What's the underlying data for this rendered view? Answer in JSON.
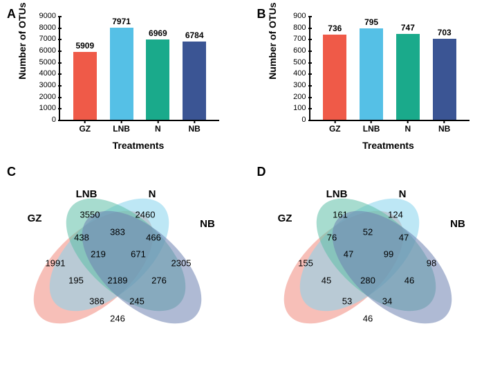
{
  "colors": {
    "gz": "#ef5a48",
    "lnb": "#55c0e6",
    "n": "#1aaa8b",
    "nb": "#3b5594",
    "gz_fill": "#f08a7e",
    "lnb_fill": "#87d3ec",
    "n_fill": "#5fc0a8",
    "nb_fill": "#6e82b1"
  },
  "panelA": {
    "label": "A",
    "type": "bar",
    "ylabel": "Number of OTUs",
    "xlabel": "Treatments",
    "ymax": 9000,
    "ytick_step": 1000,
    "categories": [
      "GZ",
      "LNB",
      "N",
      "NB"
    ],
    "values": [
      5909,
      7971,
      6969,
      6784
    ],
    "bar_colors": [
      "#ef5a48",
      "#55c0e6",
      "#1aaa8b",
      "#3b5594"
    ]
  },
  "panelB": {
    "label": "B",
    "type": "bar",
    "ylabel": "Number of OTUs",
    "xlabel": "Treatments",
    "ymax": 900,
    "ytick_step": 100,
    "categories": [
      "GZ",
      "LNB",
      "N",
      "NB"
    ],
    "values": [
      736,
      795,
      747,
      703
    ],
    "bar_colors": [
      "#ef5a48",
      "#55c0e6",
      "#1aaa8b",
      "#3b5594"
    ]
  },
  "panelC": {
    "label": "C",
    "type": "venn4",
    "sets": [
      "GZ",
      "LNB",
      "N",
      "NB"
    ],
    "regions": {
      "gz_only": 1991,
      "lnb_only": 3550,
      "n_only": 2460,
      "nb_only": 2305,
      "gz_lnb": 438,
      "lnb_n": 383,
      "n_nb": 466,
      "gz_nb": 246,
      "gz_n": 195,
      "lnb_nb": 276,
      "gz_lnb_n": 219,
      "lnb_n_nb": 671,
      "gz_n_nb": 386,
      "gz_lnb_nb": 245,
      "all": 2189
    }
  },
  "panelD": {
    "label": "D",
    "type": "venn4",
    "sets": [
      "GZ",
      "LNB",
      "N",
      "NB"
    ],
    "regions": {
      "gz_only": 155,
      "lnb_only": 161,
      "n_only": 124,
      "nb_only": 98,
      "gz_lnb": 76,
      "lnb_n": 52,
      "n_nb": 47,
      "gz_nb": 46,
      "gz_n": 45,
      "lnb_nb": 46,
      "gz_lnb_n": 47,
      "lnb_n_nb": 99,
      "gz_n_nb": 53,
      "gz_lnb_nb": 34,
      "all": 280
    }
  }
}
